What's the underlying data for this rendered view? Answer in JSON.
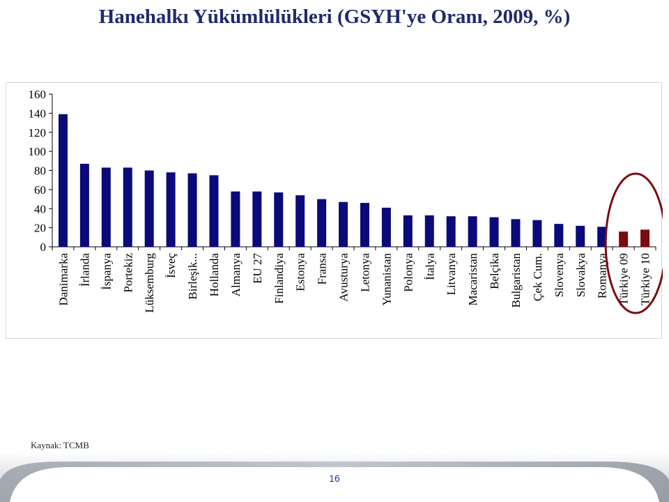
{
  "title": "Hanehalkı Yükümlülükleri (GSYH'ye Oranı, 2009, %)",
  "source": "Kaynak: TCMB",
  "page_number": "16",
  "colors": {
    "bar": "#0a0a7a",
    "highlight_bar": "#7a0c10",
    "circle": "#7a0c10",
    "title": "#1f2a6b"
  },
  "chart_data": {
    "type": "bar",
    "title": "",
    "xlabel": "",
    "ylabel": "",
    "ylim": [
      0,
      160
    ],
    "yticks": [
      0,
      20,
      40,
      60,
      80,
      100,
      120,
      140,
      160
    ],
    "grid": false,
    "categories": [
      "Danimarka",
      "İrlanda",
      "İspanya",
      "Portekiz",
      "Lüksemburg",
      "İsveç",
      "Birleşik...",
      "Hollanda",
      "Almanya",
      "EU 27",
      "Finlandiya",
      "Estonya",
      "Fransa",
      "Avusturya",
      "Letonya",
      "Yunanistan",
      "Polonya",
      "İtalya",
      "Litvanya",
      "Macaristan",
      "Belçika",
      "Bulgaristan",
      "Çek Cum.",
      "Slovenya",
      "Slovakya",
      "Romanya",
      "Türkiye 09",
      "Türkiye 10"
    ],
    "values": [
      139,
      87,
      83,
      83,
      80,
      78,
      77,
      75,
      58,
      58,
      57,
      54,
      50,
      47,
      46,
      41,
      33,
      33,
      32,
      32,
      31,
      29,
      28,
      24,
      22,
      21,
      16,
      18
    ],
    "highlighted": [
      "Türkiye 09",
      "Türkiye 10"
    ]
  }
}
